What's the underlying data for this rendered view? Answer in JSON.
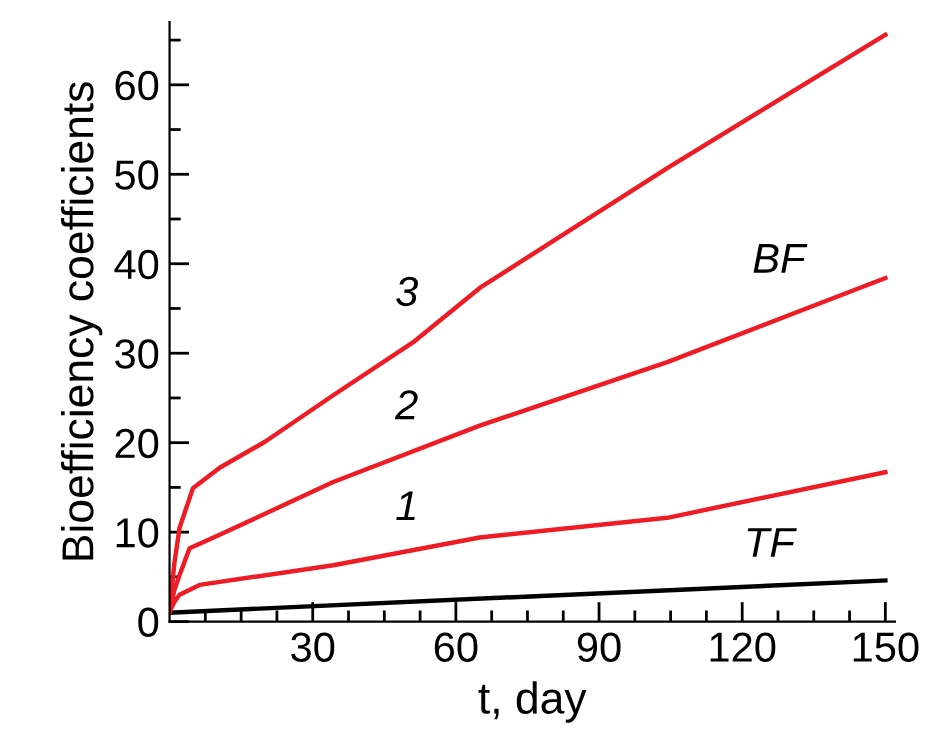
{
  "chart_data": {
    "type": "line",
    "xlabel": "t, day",
    "ylabel": "Bioefficiency coefficients",
    "xlim": [
      0,
      152
    ],
    "ylim": [
      0,
      67
    ],
    "xticks": [
      {
        "value": 7.5,
        "label": null
      },
      {
        "value": 15,
        "label": null
      },
      {
        "value": 22.5,
        "label": null
      },
      30,
      {
        "value": 37.5,
        "label": null
      },
      {
        "value": 45,
        "label": null
      },
      {
        "value": 52.5,
        "label": null
      },
      60,
      {
        "value": 67.5,
        "label": null
      },
      {
        "value": 75,
        "label": null
      },
      {
        "value": 82.5,
        "label": null
      },
      90,
      {
        "value": 97.5,
        "label": null
      },
      {
        "value": 105,
        "label": null
      },
      {
        "value": 112.5,
        "label": null
      },
      120,
      {
        "value": 127.5,
        "label": null
      },
      {
        "value": 135,
        "label": null
      },
      {
        "value": 142.5,
        "label": null
      },
      150
    ],
    "yticks": [
      0,
      {
        "value": 5,
        "label": null
      },
      10,
      {
        "value": 15,
        "label": null
      },
      20,
      {
        "value": 25,
        "label": null
      },
      30,
      {
        "value": 35,
        "label": null
      },
      40,
      {
        "value": 45,
        "label": null
      },
      50,
      {
        "value": 55,
        "label": null
      },
      60,
      {
        "value": 65,
        "label": null
      }
    ],
    "grid": false,
    "legend": false,
    "marker": "none",
    "line_style": "solid",
    "series": [
      {
        "name": "TF",
        "color": "#000000",
        "x": [
          0,
          150
        ],
        "values": [
          1.0,
          4.6
        ]
      },
      {
        "name": "1",
        "color": "#ee1c25",
        "x": [
          0,
          1,
          2.1,
          6.3,
          34.3,
          65,
          104.3,
          150
        ],
        "values": [
          1.1,
          2.2,
          3.0,
          4.1,
          6.3,
          9.4,
          11.6,
          16.7
        ]
      },
      {
        "name": "2",
        "color": "#ee1c25",
        "x": [
          0,
          1,
          2.1,
          4.2,
          10.5,
          34.3,
          65,
          104.3,
          150
        ],
        "values": [
          1.1,
          3.5,
          5.2,
          8.2,
          9.7,
          15.6,
          21.9,
          29.0,
          38.4
        ]
      },
      {
        "name": "3",
        "color": "#ee1c25",
        "x": [
          0,
          1,
          2.1,
          4.9,
          10.5,
          20,
          34.3,
          51,
          65,
          104.3,
          150
        ],
        "values": [
          1.1,
          6.5,
          10.5,
          14.9,
          17.2,
          20.1,
          25.3,
          31.2,
          37.3,
          50.7,
          65.6
        ]
      }
    ],
    "annotations": [
      "BF"
    ]
  }
}
